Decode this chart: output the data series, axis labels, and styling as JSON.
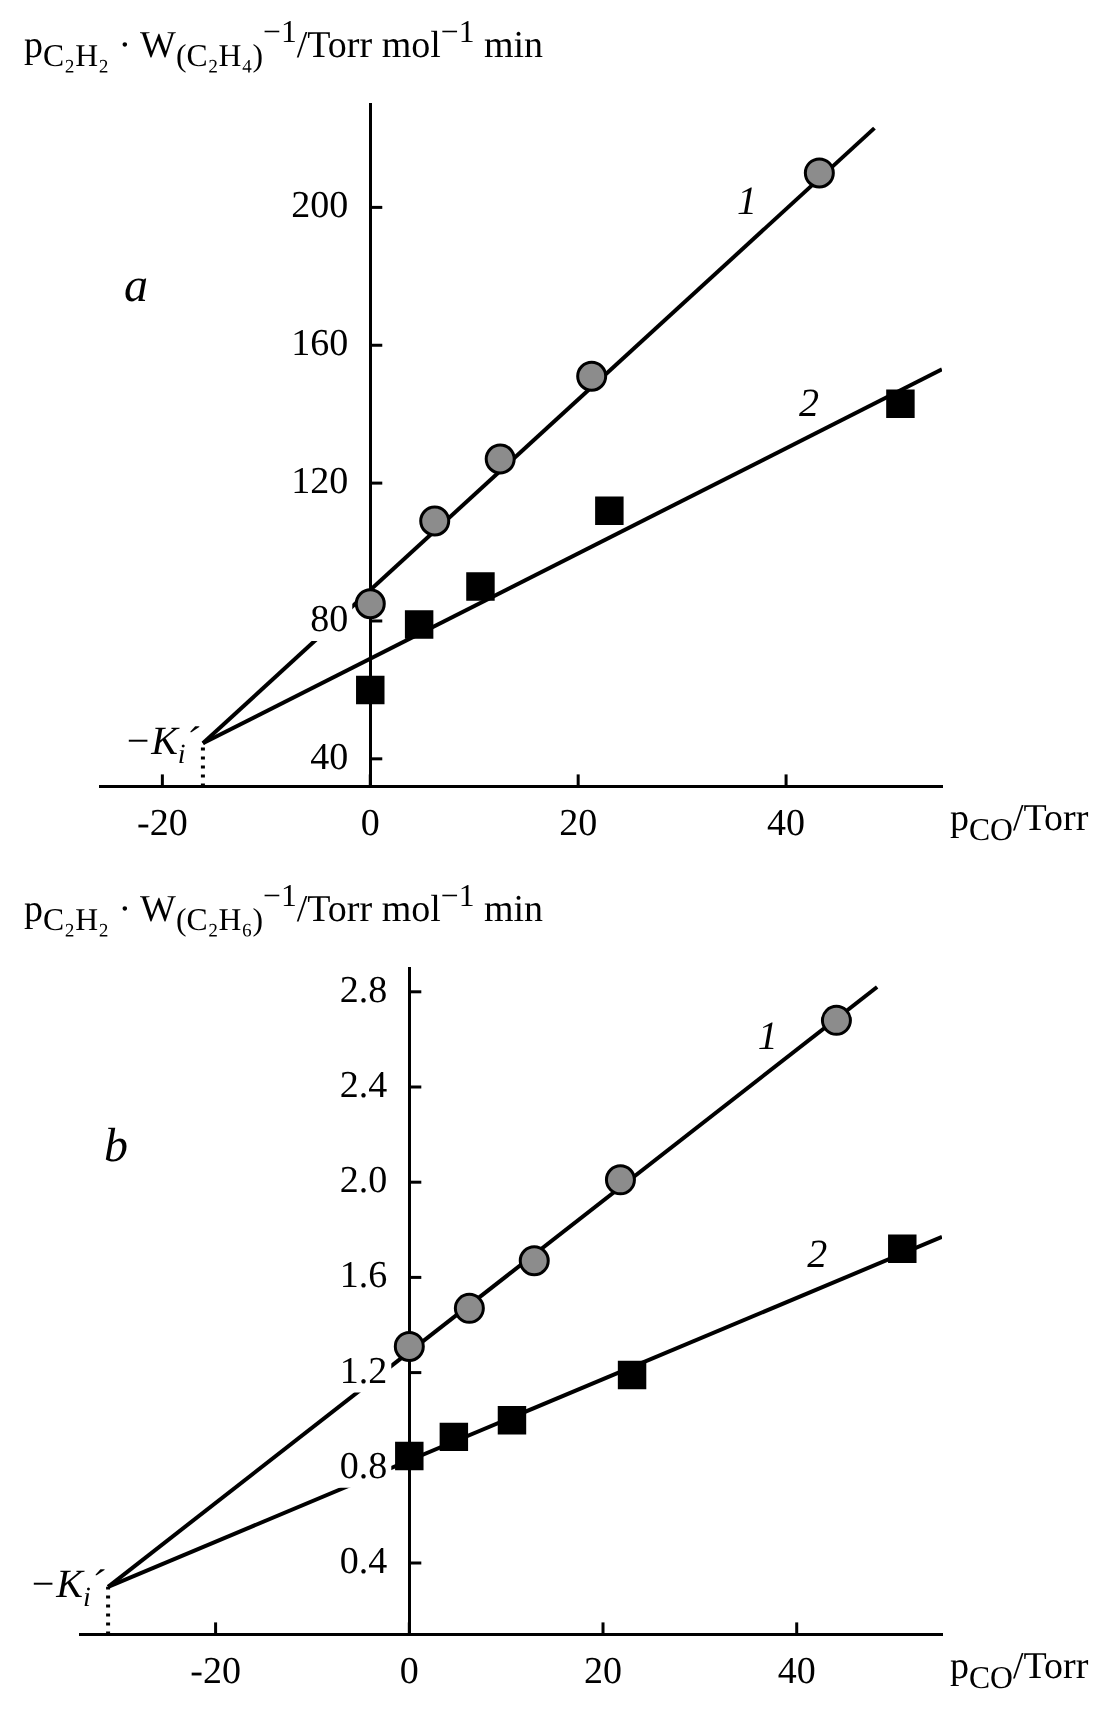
{
  "chart_data": [
    {
      "type": "scatter",
      "ylabel": "p$_{C₂H₂}$ · W$_{(C₂H₄)}$$^{−1}$/Torr mol$^{−1}$ min",
      "xlabel": "p$_{CO}$/Torr",
      "xlim": [
        -26,
        55
      ],
      "xticks": [
        -20,
        0,
        20,
        40
      ],
      "ylim": [
        32,
        230
      ],
      "yticks": [
        40,
        80,
        120,
        160,
        200
      ],
      "legend": false,
      "series": [
        {
          "name": "1",
          "color": "#8c8c8c",
          "marker": "circle",
          "x": [
            0,
            6.2,
            12.5,
            21.3,
            43.2
          ],
          "values": [
            85,
            109,
            127,
            151,
            210
          ]
        },
        {
          "name": "2",
          "color": "#000000",
          "marker": "square",
          "x": [
            0,
            4.7,
            10.6,
            23,
            51
          ],
          "values": [
            60,
            79,
            90,
            112,
            143
          ]
        },
        {
          "type": "line",
          "color": "#000000",
          "marker": "none",
          "x": [
            -16.1,
            48.5
          ],
          "values": [
            44.5,
            223
          ]
        },
        {
          "type": "line",
          "color": "#000000",
          "marker": "none",
          "x": [
            -16.1,
            55
          ],
          "values": [
            44.5,
            153
          ]
        },
        {
          "type": "line",
          "color": "#000000",
          "marker": "none",
          "line_style": "dotted",
          "x": [
            -16.1,
            -16.1
          ],
          "values": [
            32,
            44.5
          ]
        }
      ],
      "annotations": [
        "a",
        {
          "text": "−K$_{i}$´",
          "x": -16.1,
          "y": 44.5
        }
      ]
    },
    {
      "type": "scatter",
      "ylabel": "p$_{C₂H₂}$ · W$_{(C₂H₆)}$$^{−1}$/Torr mol$^{−1}$ min",
      "xlabel": "p$_{CO}$/Torr",
      "xlim": [
        -34,
        55
      ],
      "xticks": [
        -20,
        0,
        20,
        40
      ],
      "ylim": [
        0.1,
        2.9
      ],
      "yticks": [
        0.4,
        0.8,
        1.2,
        1.6,
        {
          "value": 2,
          "label": "2.0"
        },
        2.4,
        2.8
      ],
      "legend": false,
      "series": [
        {
          "name": "1",
          "color": "#8c8c8c",
          "marker": "circle",
          "x": [
            0,
            6.2,
            12.9,
            21.8,
            44.1
          ],
          "values": [
            1.31,
            1.47,
            1.67,
            2.01,
            2.68
          ]
        },
        {
          "name": "2",
          "color": "#000000",
          "marker": "square",
          "x": [
            0,
            4.6,
            10.6,
            23,
            50.9
          ],
          "values": [
            0.85,
            0.93,
            1.0,
            1.19,
            1.72
          ]
        },
        {
          "type": "line",
          "color": "#000000",
          "marker": "none",
          "x": [
            -31.1,
            48.3
          ],
          "values": [
            0.3,
            2.82
          ]
        },
        {
          "type": "line",
          "color": "#000000",
          "marker": "none",
          "x": [
            -31.1,
            55
          ],
          "values": [
            0.3,
            1.77
          ]
        },
        {
          "type": "line",
          "color": "#000000",
          "marker": "none",
          "line_style": "dotted",
          "x": [
            -31.1,
            -31.1
          ],
          "values": [
            0.1,
            0.3
          ]
        }
      ],
      "annotations": [
        "b",
        {
          "text": "−K$_{i}$´",
          "x": -31.1,
          "y": 0.3
        }
      ]
    }
  ]
}
